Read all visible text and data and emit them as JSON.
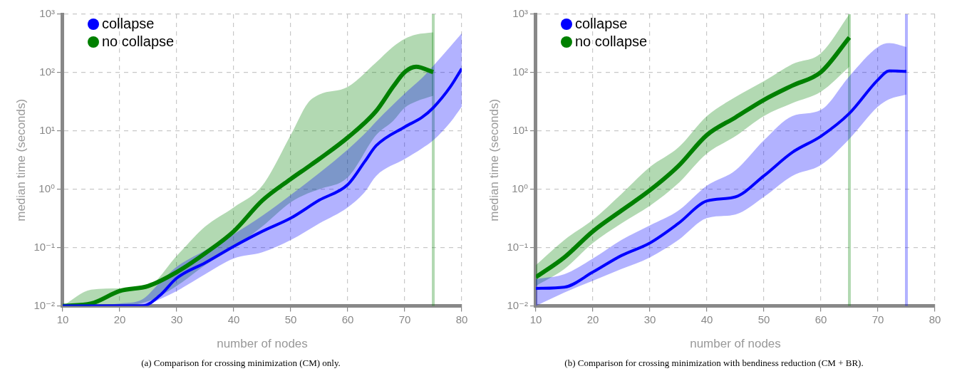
{
  "chart_data": [
    {
      "type": "line",
      "xlabel": "number of nodes",
      "ylabel": "median time (seconds)",
      "log": "y",
      "grid": true,
      "legend": "top left",
      "xlim": [
        10,
        80
      ],
      "xticks": [
        10,
        20,
        30,
        40,
        50,
        60,
        70,
        80
      ],
      "ylim": [
        0.01,
        1000
      ],
      "yticks": [
        {
          "value": 0.01,
          "label": "10⁻²"
        },
        {
          "value": 0.1,
          "label": "10⁻¹"
        },
        {
          "value": 1,
          "label": "10⁰"
        },
        {
          "value": 10,
          "label": "10¹"
        },
        {
          "value": 100,
          "label": "10²"
        },
        {
          "value": 1000,
          "label": "10³"
        }
      ],
      "series": [
        {
          "name": "collapse",
          "color": "#0000ff",
          "x": [
            10,
            20,
            24,
            27,
            30,
            35,
            40,
            45,
            50,
            55,
            60,
            63,
            65,
            70,
            73,
            75,
            78,
            80
          ],
          "values": [
            0.01,
            0.01,
            0.01,
            0.015,
            0.03,
            0.055,
            0.105,
            0.19,
            0.32,
            0.65,
            1.2,
            3,
            5.6,
            11.7,
            17,
            25,
            57,
            117
          ],
          "lower": [
            0.01,
            0.01,
            0.01,
            0.013,
            0.018,
            0.035,
            0.065,
            0.083,
            0.135,
            0.26,
            0.49,
            0.9,
            1.7,
            3.3,
            5,
            6.9,
            14,
            26
          ],
          "upper": [
            0.01,
            0.011,
            0.013,
            0.025,
            0.047,
            0.09,
            0.17,
            0.35,
            0.8,
            1.9,
            4.8,
            9,
            14.6,
            44,
            80,
            130,
            280,
            470
          ]
        },
        {
          "name": "no collapse",
          "color": "#008000",
          "x": [
            10,
            15,
            20,
            25,
            30,
            35,
            40,
            45,
            50,
            53,
            55,
            60,
            65,
            68,
            70,
            72,
            75
          ],
          "values": [
            0.01,
            0.011,
            0.018,
            0.022,
            0.038,
            0.08,
            0.19,
            0.64,
            1.5,
            2.4,
            3.3,
            7.7,
            22,
            58,
            102,
            126,
            102
          ],
          "lower": [
            0.01,
            0.01,
            0.01,
            0.012,
            0.022,
            0.05,
            0.1,
            0.23,
            0.6,
            0.85,
            1,
            1.6,
            8.5,
            15,
            25,
            32,
            40
          ],
          "upper": [
            0.01,
            0.019,
            0.02,
            0.022,
            0.072,
            0.23,
            0.49,
            1.15,
            8.5,
            30,
            42,
            57,
            150,
            280,
            380,
            450,
            490
          ]
        }
      ],
      "ref_lines": [
        {
          "axis": "x",
          "value": 75,
          "color": "#008000"
        }
      ],
      "annotations": [
        "(a) Comparison for crossing minimization (CM) only."
      ]
    },
    {
      "type": "line",
      "xlabel": "number of nodes",
      "ylabel": "median time (seconds)",
      "log": "y",
      "grid": true,
      "legend": "top left",
      "xlim": [
        10,
        80
      ],
      "xticks": [
        10,
        20,
        30,
        40,
        50,
        60,
        70,
        80
      ],
      "ylim": [
        0.01,
        1000
      ],
      "yticks": [
        {
          "value": 0.01,
          "label": "10⁻²"
        },
        {
          "value": 0.1,
          "label": "10⁻¹"
        },
        {
          "value": 1,
          "label": "10⁰"
        },
        {
          "value": 10,
          "label": "10¹"
        },
        {
          "value": 100,
          "label": "10²"
        },
        {
          "value": 1000,
          "label": "10³"
        }
      ],
      "series": [
        {
          "name": "collapse",
          "color": "#0000ff",
          "x": [
            10,
            15,
            20,
            25,
            30,
            35,
            40,
            45,
            50,
            55,
            60,
            65,
            70,
            72,
            75
          ],
          "values": [
            0.02,
            0.021,
            0.038,
            0.073,
            0.12,
            0.26,
            0.63,
            0.74,
            1.7,
            4.3,
            8.1,
            20,
            75,
            107,
            105
          ],
          "lower": [
            0.01,
            0.017,
            0.027,
            0.043,
            0.068,
            0.135,
            0.32,
            0.37,
            0.74,
            1.7,
            2.6,
            7.3,
            26,
            35,
            42
          ],
          "upper": [
            0.029,
            0.035,
            0.065,
            0.135,
            0.24,
            0.43,
            1.15,
            2.1,
            6.9,
            18,
            23,
            87,
            275,
            320,
            275
          ]
        },
        {
          "name": "no collapse",
          "color": "#008000",
          "x": [
            10,
            15,
            20,
            25,
            30,
            35,
            40,
            45,
            50,
            55,
            60,
            65
          ],
          "values": [
            0.031,
            0.068,
            0.19,
            0.43,
            0.96,
            2.5,
            8.5,
            17,
            34,
            60,
            102,
            400
          ],
          "lower": [
            0.022,
            0.043,
            0.12,
            0.26,
            0.52,
            1.27,
            4.1,
            8.1,
            18,
            30,
            47,
            126
          ],
          "upper": [
            0.05,
            0.135,
            0.3,
            0.83,
            2.4,
            5.2,
            18,
            38,
            71,
            140,
            215,
            1000
          ]
        }
      ],
      "ref_lines": [
        {
          "axis": "x",
          "value": 65,
          "color": "#008000"
        },
        {
          "axis": "x",
          "value": 75,
          "color": "#0000ff"
        }
      ],
      "annotations": [
        "(b) Comparison for crossing minimization with bendiness reduction (CM + BR)."
      ]
    }
  ]
}
